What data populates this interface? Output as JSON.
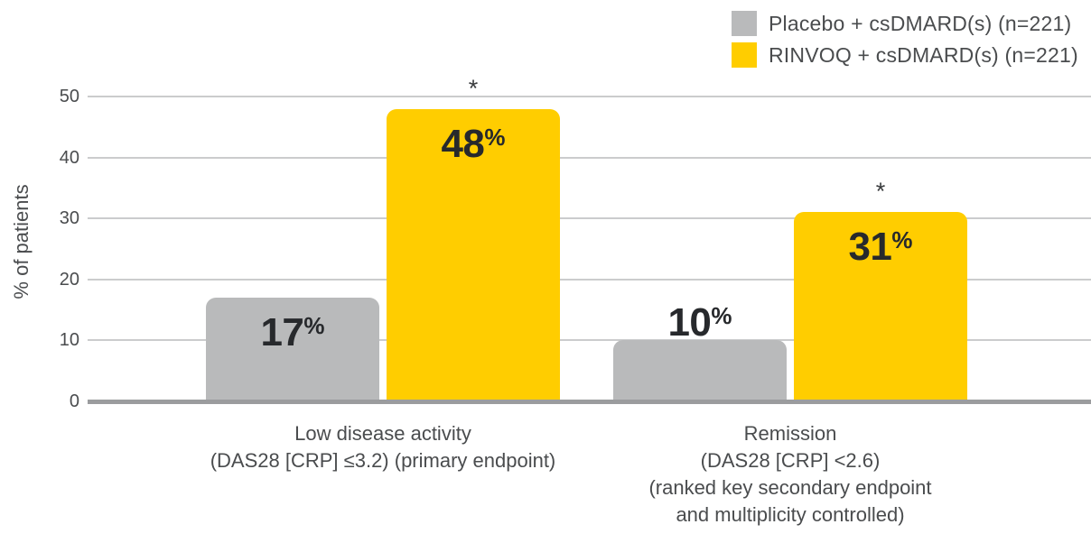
{
  "chart_data": {
    "type": "bar",
    "title": "",
    "xlabel": "",
    "ylabel": "% of patients",
    "ylim": [
      0,
      50
    ],
    "yticks": [
      0,
      10,
      20,
      30,
      40,
      50
    ],
    "grid": true,
    "legend_position": "top-right",
    "value_suffix": "%",
    "significance_marker": "*",
    "categories": [
      {
        "label_lines": [
          "Low disease activity",
          "(DAS28 [CRP] ≤3.2) (primary endpoint)"
        ]
      },
      {
        "label_lines": [
          "Remission",
          "(DAS28 [CRP] <2.6)",
          "(ranked key secondary endpoint",
          "and multiplicity controlled)"
        ]
      }
    ],
    "series": [
      {
        "name": "Placebo + csDMARD(s) (n=221)",
        "color": "#B9BABB",
        "values": [
          17,
          10
        ],
        "starred": [
          false,
          false
        ]
      },
      {
        "name": "RINVOQ + csDMARD(s) (n=221)",
        "color": "#FFCD00",
        "values": [
          48,
          31
        ],
        "starred": [
          true,
          true
        ]
      }
    ]
  },
  "colors": {
    "background": "#FFFFFF",
    "axis_text": "#4A4C4E",
    "value_text": "#27292C",
    "gridline": "#CBCCCD",
    "baseline": "#9B9C9E",
    "placebo_gray": "#B9BABB",
    "rinvoq_yellow": "#FFCD00"
  }
}
